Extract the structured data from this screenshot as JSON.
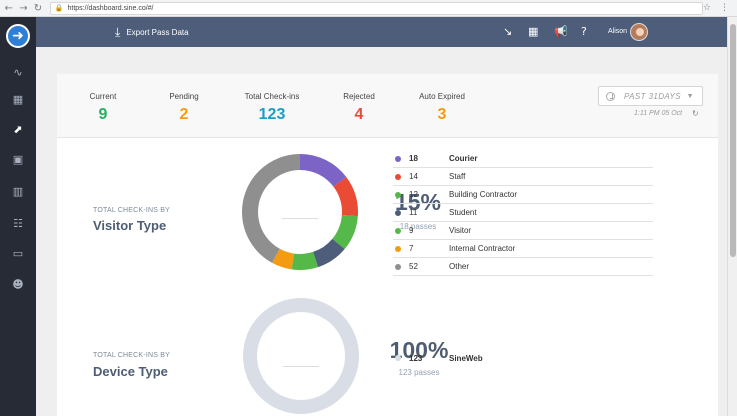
{
  "browser": {
    "url": "https://dashboard.sine.co/#/"
  },
  "topbar": {
    "export_label": "Export Pass Data",
    "user_name": "Alison"
  },
  "summary": [
    {
      "label": "Current",
      "value": "9",
      "color": "#27ae60"
    },
    {
      "label": "Pending",
      "value": "2",
      "color": "#f39c12"
    },
    {
      "label": "Total Check-ins",
      "value": "123",
      "color": "#1d9cc6"
    },
    {
      "label": "Rejected",
      "value": "4",
      "color": "#e74c3c"
    },
    {
      "label": "Auto Expired",
      "value": "3",
      "color": "#f39c12"
    }
  ],
  "filter": {
    "range_label": "PAST 31DAYS",
    "updated": "1:11 PM 05 Oct"
  },
  "visitor_section": {
    "subtitle": "TOTAL CHECK-INS BY",
    "title": "Visitor Type",
    "percent": "15%",
    "passes": "18 passes",
    "legend": [
      {
        "count": "18",
        "label": "Courier",
        "color": "#7c63c6",
        "bold": true
      },
      {
        "count": "14",
        "label": "Staff",
        "color": "#ea4b34",
        "bold": false
      },
      {
        "count": "12",
        "label": "Building Contractor",
        "color": "#55b949",
        "bold": false
      },
      {
        "count": "11",
        "label": "Student",
        "color": "#4d5d7a",
        "bold": false
      },
      {
        "count": "9",
        "label": "Visitor",
        "color": "#55b949",
        "bold": false
      },
      {
        "count": "7",
        "label": "Internal Contractor",
        "color": "#f39c12",
        "bold": false
      },
      {
        "count": "52",
        "label": "Other",
        "color": "#8f8f8f",
        "bold": false
      }
    ]
  },
  "device_section": {
    "subtitle": "TOTAL CHECK-INS BY",
    "title": "Device Type",
    "percent": "100%",
    "passes": "123 passes",
    "legend": [
      {
        "count": "123",
        "label": "SineWeb",
        "color": "#d8dde6",
        "bold": true
      }
    ]
  },
  "icons": {
    "logo": "arrow-right-icon",
    "sidebar": [
      "activity-icon",
      "calendar-icon",
      "trend-icon",
      "badge-icon",
      "building-icon",
      "user-list-icon",
      "monitor-icon",
      "people-icon"
    ],
    "topbar": [
      "arrow-down-right-icon",
      "calendar-icon",
      "megaphone-icon",
      "help-icon"
    ]
  }
}
